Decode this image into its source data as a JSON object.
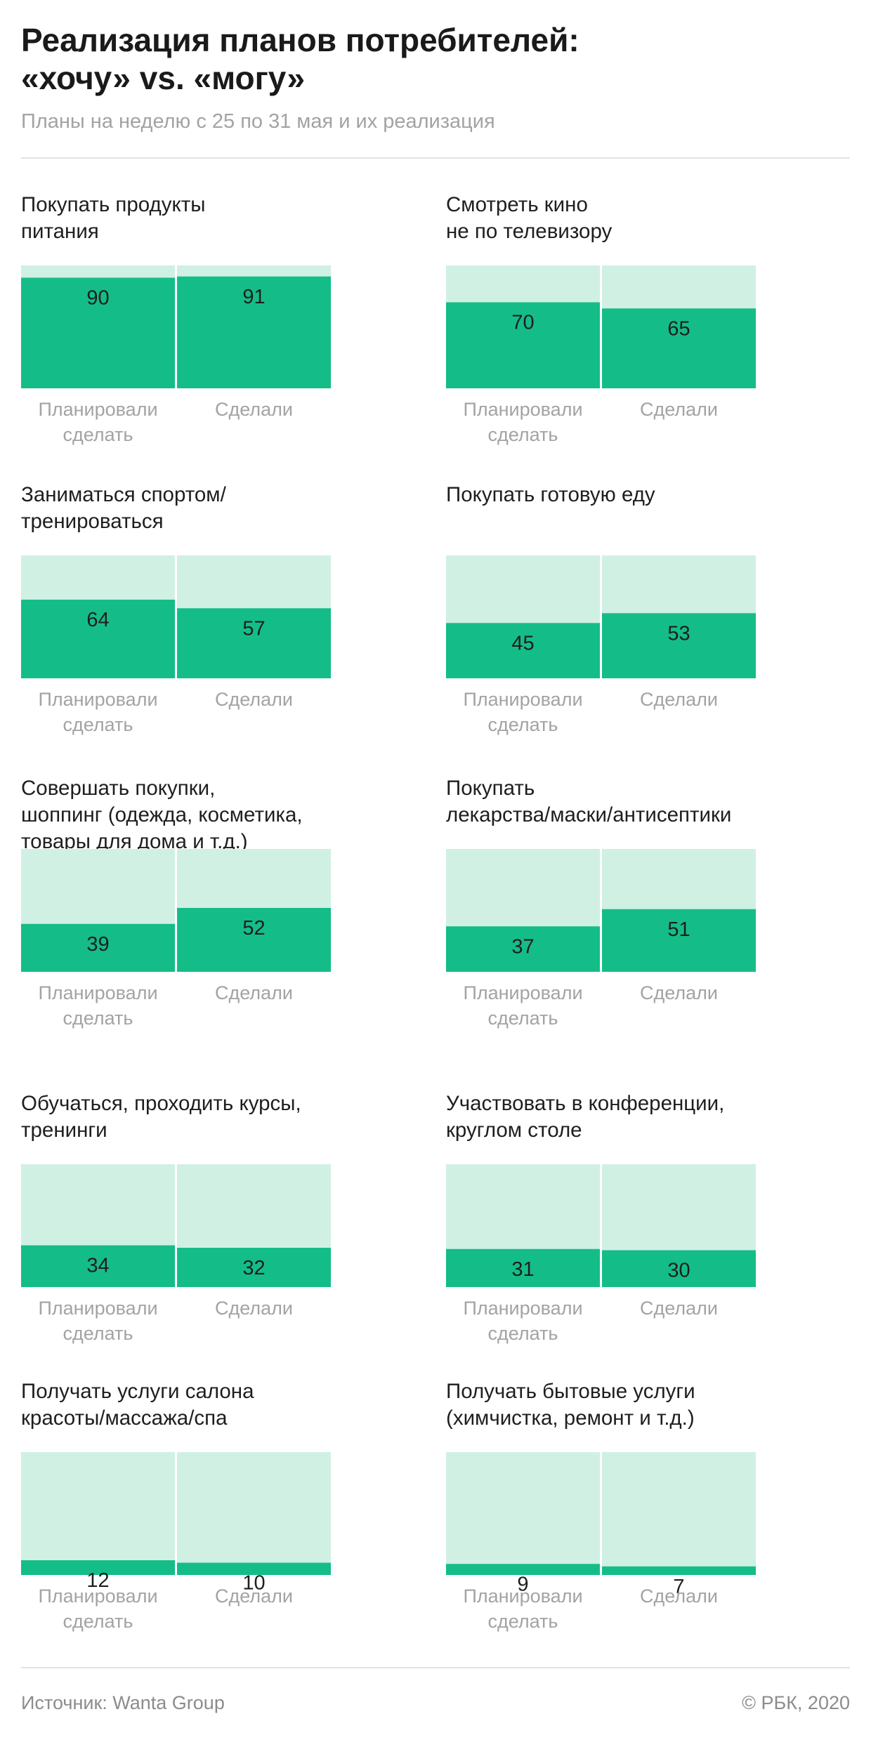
{
  "header": {
    "title_line1": "Реализация планов потребителей:",
    "title_line2": "«хочу» vs. «могу»",
    "subtitle": "Планы на неделю с 25 по 31 мая и их реализация"
  },
  "colors": {
    "bar_fill": "#14bd87",
    "bar_background": "#d0f0e4",
    "value_text": "#1e1e1e",
    "axis_label": "#a3a3a3"
  },
  "chart_data": [
    {
      "type": "bar",
      "title": "Покупать продукты\nпитания",
      "categories": [
        "Планировали\nсделать",
        "Сделали"
      ],
      "values": [
        90,
        91
      ],
      "ylim": [
        0,
        100
      ]
    },
    {
      "type": "bar",
      "title": "Смотреть кино\nне по телевизору",
      "categories": [
        "Планировали\nсделать",
        "Сделали"
      ],
      "values": [
        70,
        65
      ],
      "ylim": [
        0,
        100
      ]
    },
    {
      "type": "bar",
      "title": "Заниматься спортом/\nтренироваться",
      "categories": [
        "Планировали\nсделать",
        "Сделали"
      ],
      "values": [
        64,
        57
      ],
      "ylim": [
        0,
        100
      ]
    },
    {
      "type": "bar",
      "title": "Покупать готовую еду",
      "categories": [
        "Планировали\nсделать",
        "Сделали"
      ],
      "values": [
        45,
        53
      ],
      "ylim": [
        0,
        100
      ]
    },
    {
      "type": "bar",
      "title": "Совершать покупки,\nшоппинг (одежда, косметика,\nтовары для дома и т.д.)",
      "categories": [
        "Планировали\nсделать",
        "Сделали"
      ],
      "values": [
        39,
        52
      ],
      "ylim": [
        0,
        100
      ]
    },
    {
      "type": "bar",
      "title": "Покупать\nлекарства/маски/антисептики",
      "categories": [
        "Планировали\nсделать",
        "Сделали"
      ],
      "values": [
        37,
        51
      ],
      "ylim": [
        0,
        100
      ]
    },
    {
      "type": "bar",
      "title": "Обучаться, проходить курсы,\nтренинги",
      "categories": [
        "Планировали\nсделать",
        "Сделали"
      ],
      "values": [
        34,
        32
      ],
      "ylim": [
        0,
        100
      ]
    },
    {
      "type": "bar",
      "title": "Участвовать в конференции,\nкруглом столе",
      "categories": [
        "Планировали\nсделать",
        "Сделали"
      ],
      "values": [
        31,
        30
      ],
      "ylim": [
        0,
        100
      ]
    },
    {
      "type": "bar",
      "title": "Получать услуги салона\nкрасоты/массажа/спа",
      "categories": [
        "Планировали\nсделать",
        "Сделали"
      ],
      "values": [
        12,
        10
      ],
      "ylim": [
        0,
        100
      ]
    },
    {
      "type": "bar",
      "title": "Получать бытовые услуги\n(химчистка, ремонт и т.д.)",
      "categories": [
        "Планировали\nсделать",
        "Сделали"
      ],
      "values": [
        9,
        7
      ],
      "ylim": [
        0,
        100
      ]
    }
  ],
  "footer": {
    "source": "Источник: Wanta Group",
    "credit": "© РБК, 2020"
  }
}
